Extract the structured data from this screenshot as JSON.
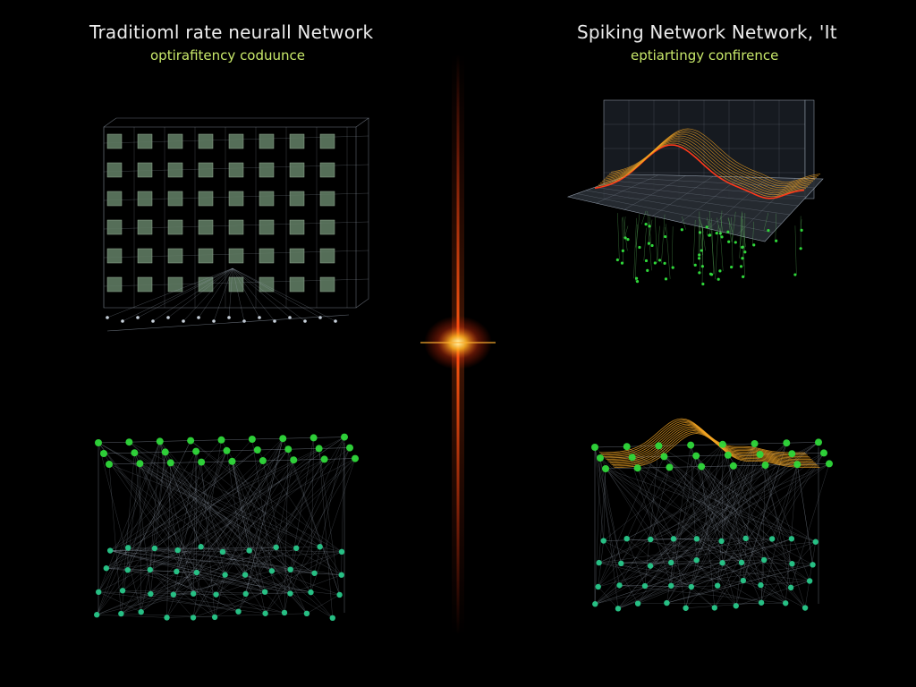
{
  "left": {
    "title": "Traditioml rate neurall Network",
    "subtitle": "optirafitency coduunce"
  },
  "right": {
    "title": "Spiking Network Network, 'It",
    "subtitle": "eptiartingy confirence"
  },
  "colors": {
    "background": "#000000",
    "subtitle": "#c8e86a",
    "node_green": "#2fd83a",
    "node_teal": "#28c88a",
    "lattice": "#9ea9b8",
    "grid_block": "#5f7a62",
    "surface_orange": "#f5a623",
    "surface_red": "#ff3a1a",
    "divider_glow": "#ff4a10"
  }
}
